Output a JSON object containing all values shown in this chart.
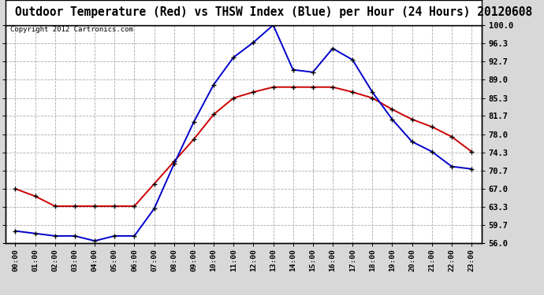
{
  "title": "Outdoor Temperature (Red) vs THSW Index (Blue) per Hour (24 Hours) 20120608",
  "copyright": "Copyright 2012 Cartronics.com",
  "hours": [
    "00:00",
    "01:00",
    "02:00",
    "03:00",
    "04:00",
    "05:00",
    "06:00",
    "07:00",
    "08:00",
    "09:00",
    "10:00",
    "11:00",
    "12:00",
    "13:00",
    "14:00",
    "15:00",
    "16:00",
    "17:00",
    "18:00",
    "19:00",
    "20:00",
    "21:00",
    "22:00",
    "23:00"
  ],
  "red_temp": [
    67.0,
    65.5,
    63.5,
    63.5,
    63.5,
    63.5,
    63.5,
    68.0,
    72.5,
    77.0,
    82.0,
    85.3,
    86.5,
    87.5,
    87.5,
    87.5,
    87.5,
    86.5,
    85.3,
    83.0,
    81.0,
    79.5,
    77.5,
    74.5
  ],
  "blue_thsw": [
    58.5,
    58.0,
    57.5,
    57.5,
    56.5,
    57.5,
    57.5,
    63.0,
    72.0,
    80.5,
    88.0,
    93.5,
    96.5,
    100.0,
    91.0,
    90.5,
    95.3,
    93.0,
    86.5,
    81.0,
    76.5,
    74.5,
    71.5,
    71.0
  ],
  "ylim": [
    56.0,
    100.0
  ],
  "yticks": [
    56.0,
    59.7,
    63.3,
    67.0,
    70.7,
    74.3,
    78.0,
    81.7,
    85.3,
    89.0,
    92.7,
    96.3,
    100.0
  ],
  "bg_color": "#d8d8d8",
  "plot_bg": "#ffffff",
  "red_color": "#cc0000",
  "blue_color": "#0000cc",
  "grid_color": "#aaaaaa",
  "title_fontsize": 10.5,
  "copyright_fontsize": 6.5,
  "title_bg": "#ffffff"
}
